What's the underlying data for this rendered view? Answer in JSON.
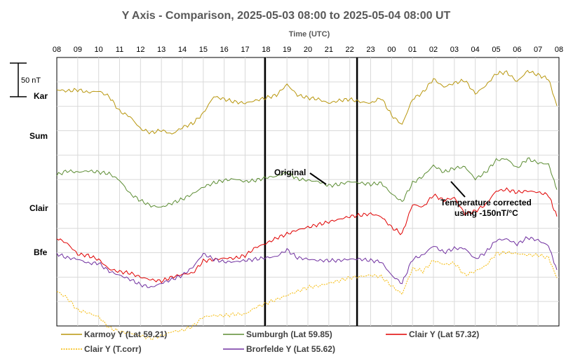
{
  "chart_data": {
    "type": "line",
    "title": "Y Axis - Comparison,  2025-05-03 08:00 to 2025-05-04 08:00 UT",
    "xlabel": "Time (UTC)",
    "x_ticks": [
      "08",
      "09",
      "10",
      "11",
      "12",
      "13",
      "14",
      "15",
      "16",
      "17",
      "18",
      "19",
      "20",
      "21",
      "22",
      "23",
      "00",
      "01",
      "02",
      "03",
      "04",
      "05",
      "06",
      "07",
      "08"
    ],
    "x_range_hours": [
      0,
      24
    ],
    "grid": true,
    "scale_bar_label": "50 nT",
    "scale_bar_value_nT": 50,
    "station_labels": [
      "Kar",
      "Sum",
      "Clair",
      "Bfe"
    ],
    "vertical_markers_hours": [
      9.95,
      14.35
    ],
    "annotations": [
      "Original",
      "Temperature corrected",
      "using -150nT/°C"
    ],
    "legend_position": "bottom",
    "series": [
      {
        "name": "Karmoy Y (Lat 59.21)",
        "color": "#b8960c",
        "style": "solid",
        "x": [
          0,
          0.5,
          1,
          1.5,
          2,
          2.5,
          3,
          3.5,
          4,
          4.5,
          5,
          5.5,
          6,
          6.5,
          7,
          7.5,
          8,
          8.5,
          9,
          9.5,
          10,
          10.5,
          11,
          11.5,
          12,
          12.5,
          13,
          13.5,
          14,
          14.5,
          15,
          15.5,
          16,
          16.5,
          17,
          17.5,
          18,
          18.5,
          19,
          19.5,
          20,
          20.5,
          21,
          21.5,
          22,
          22.5,
          23,
          23.5,
          23.9
        ],
        "y": [
          0,
          -2,
          0,
          -4,
          -2,
          -10,
          -32,
          -40,
          -58,
          -64,
          -60,
          -66,
          -56,
          -50,
          -35,
          -10,
          -14,
          -18,
          -20,
          -16,
          -12,
          -8,
          8,
          -8,
          -12,
          -14,
          -20,
          -16,
          -14,
          -18,
          -20,
          -12,
          -38,
          -52,
          -14,
          -4,
          16,
          4,
          10,
          14,
          -6,
          6,
          24,
          26,
          12,
          28,
          22,
          16,
          -24
        ]
      },
      {
        "name": "Sumburgh (Lat 59.85)",
        "color": "#5b8c32",
        "style": "solid",
        "x": [
          0,
          0.5,
          1,
          1.5,
          2,
          2.5,
          3,
          3.5,
          4,
          4.5,
          5,
          5.5,
          6,
          6.5,
          7,
          7.5,
          8,
          8.5,
          9,
          9.5,
          10,
          10.5,
          11,
          11.5,
          12,
          12.5,
          13,
          13.5,
          14,
          14.5,
          15,
          15.5,
          16,
          16.5,
          17,
          17.5,
          18,
          18.5,
          19,
          19.5,
          20,
          20.5,
          21,
          21.5,
          22,
          22.5,
          23,
          23.5,
          23.9
        ],
        "y": [
          -62,
          -56,
          -58,
          -56,
          -58,
          -60,
          -70,
          -90,
          -100,
          -108,
          -110,
          -104,
          -98,
          -90,
          -80,
          -74,
          -70,
          -68,
          -72,
          -70,
          -66,
          -64,
          -58,
          -68,
          -70,
          -72,
          -78,
          -76,
          -72,
          -74,
          -76,
          -74,
          -90,
          -102,
          -74,
          -64,
          -48,
          -58,
          -52,
          -50,
          -68,
          -58,
          -40,
          -38,
          -52,
          -38,
          -44,
          -46,
          -84
        ]
      },
      {
        "name": "Clair Y (Lat 57.32)",
        "color": "#e00000",
        "style": "solid",
        "x": [
          0,
          0.5,
          1,
          1.5,
          2,
          2.5,
          3,
          3.5,
          4,
          4.5,
          5,
          5.5,
          6,
          6.5,
          7,
          7.5,
          8,
          8.5,
          9,
          9.5,
          10,
          10.5,
          11,
          11.5,
          12,
          12.5,
          13,
          13.5,
          14,
          14.5,
          15,
          15.5,
          16,
          16.5,
          17,
          17.5,
          18,
          18.5,
          19,
          19.5,
          20,
          20.5,
          21,
          21.5,
          22,
          22.5,
          23,
          23.5,
          23.9
        ],
        "y": [
          -60,
          -68,
          -84,
          -86,
          -92,
          -106,
          -110,
          -112,
          -118,
          -122,
          -124,
          -118,
          -114,
          -112,
          -94,
          -92,
          -90,
          -90,
          -86,
          -74,
          -68,
          -60,
          -54,
          -48,
          -44,
          -40,
          -36,
          -32,
          -28,
          -26,
          -24,
          -28,
          -44,
          -54,
          -10,
          -14,
          4,
          -4,
          0,
          -24,
          -20,
          -10,
          10,
          12,
          8,
          10,
          8,
          4,
          -28
        ]
      },
      {
        "name": "Clair Y (T.corr)",
        "color": "#f5b800",
        "style": "dotted",
        "x": [
          0,
          0.5,
          1,
          1.5,
          2,
          2.5,
          3,
          3.5,
          4,
          4.5,
          5,
          5.5,
          6,
          6.5,
          7,
          7.5,
          8,
          8.5,
          9,
          9.5,
          10,
          10.5,
          11,
          11.5,
          12,
          12.5,
          13,
          13.5,
          14,
          14.5,
          15,
          15.5,
          16,
          16.5,
          17,
          17.5,
          18,
          18.5,
          19,
          19.5,
          20,
          20.5,
          21,
          21.5,
          22,
          22.5,
          23,
          23.5,
          23.9
        ],
        "y": [
          -60,
          -70,
          -88,
          -92,
          -98,
          -114,
          -120,
          -122,
          -126,
          -130,
          -126,
          -120,
          -118,
          -112,
          -98,
          -96,
          -96,
          -94,
          -94,
          -84,
          -78,
          -72,
          -66,
          -60,
          -54,
          -52,
          -48,
          -44,
          -40,
          -38,
          -36,
          -38,
          -52,
          -64,
          -26,
          -30,
          -14,
          -20,
          -18,
          -36,
          -30,
          -22,
          -4,
          -2,
          -4,
          -6,
          -6,
          -10,
          -40
        ]
      },
      {
        "name": "Brorfelde Y (Lat 55.62)",
        "color": "#7030a0",
        "style": "solid",
        "x": [
          0,
          0.5,
          1,
          1.5,
          2,
          2.5,
          3,
          3.5,
          4,
          4.5,
          5,
          5.5,
          6,
          6.5,
          7,
          7.5,
          8,
          8.5,
          9,
          9.5,
          10,
          10.5,
          11,
          11.5,
          12,
          12.5,
          13,
          13.5,
          14,
          14.5,
          15,
          15.5,
          16,
          16.5,
          17,
          17.5,
          18,
          18.5,
          19,
          19.5,
          20,
          20.5,
          21,
          21.5,
          22,
          22.5,
          23,
          23.5,
          23.9
        ],
        "y": [
          0,
          -6,
          -8,
          -14,
          -14,
          -26,
          -32,
          -38,
          -46,
          -50,
          -44,
          -38,
          -32,
          -20,
          0,
          -8,
          -12,
          -12,
          -10,
          -8,
          -6,
          -4,
          6,
          -6,
          -8,
          -10,
          -10,
          -10,
          -8,
          -8,
          -10,
          -12,
          -32,
          -44,
          -8,
          -2,
          12,
          2,
          8,
          8,
          -8,
          2,
          20,
          22,
          14,
          24,
          20,
          12,
          -24
        ]
      }
    ]
  }
}
